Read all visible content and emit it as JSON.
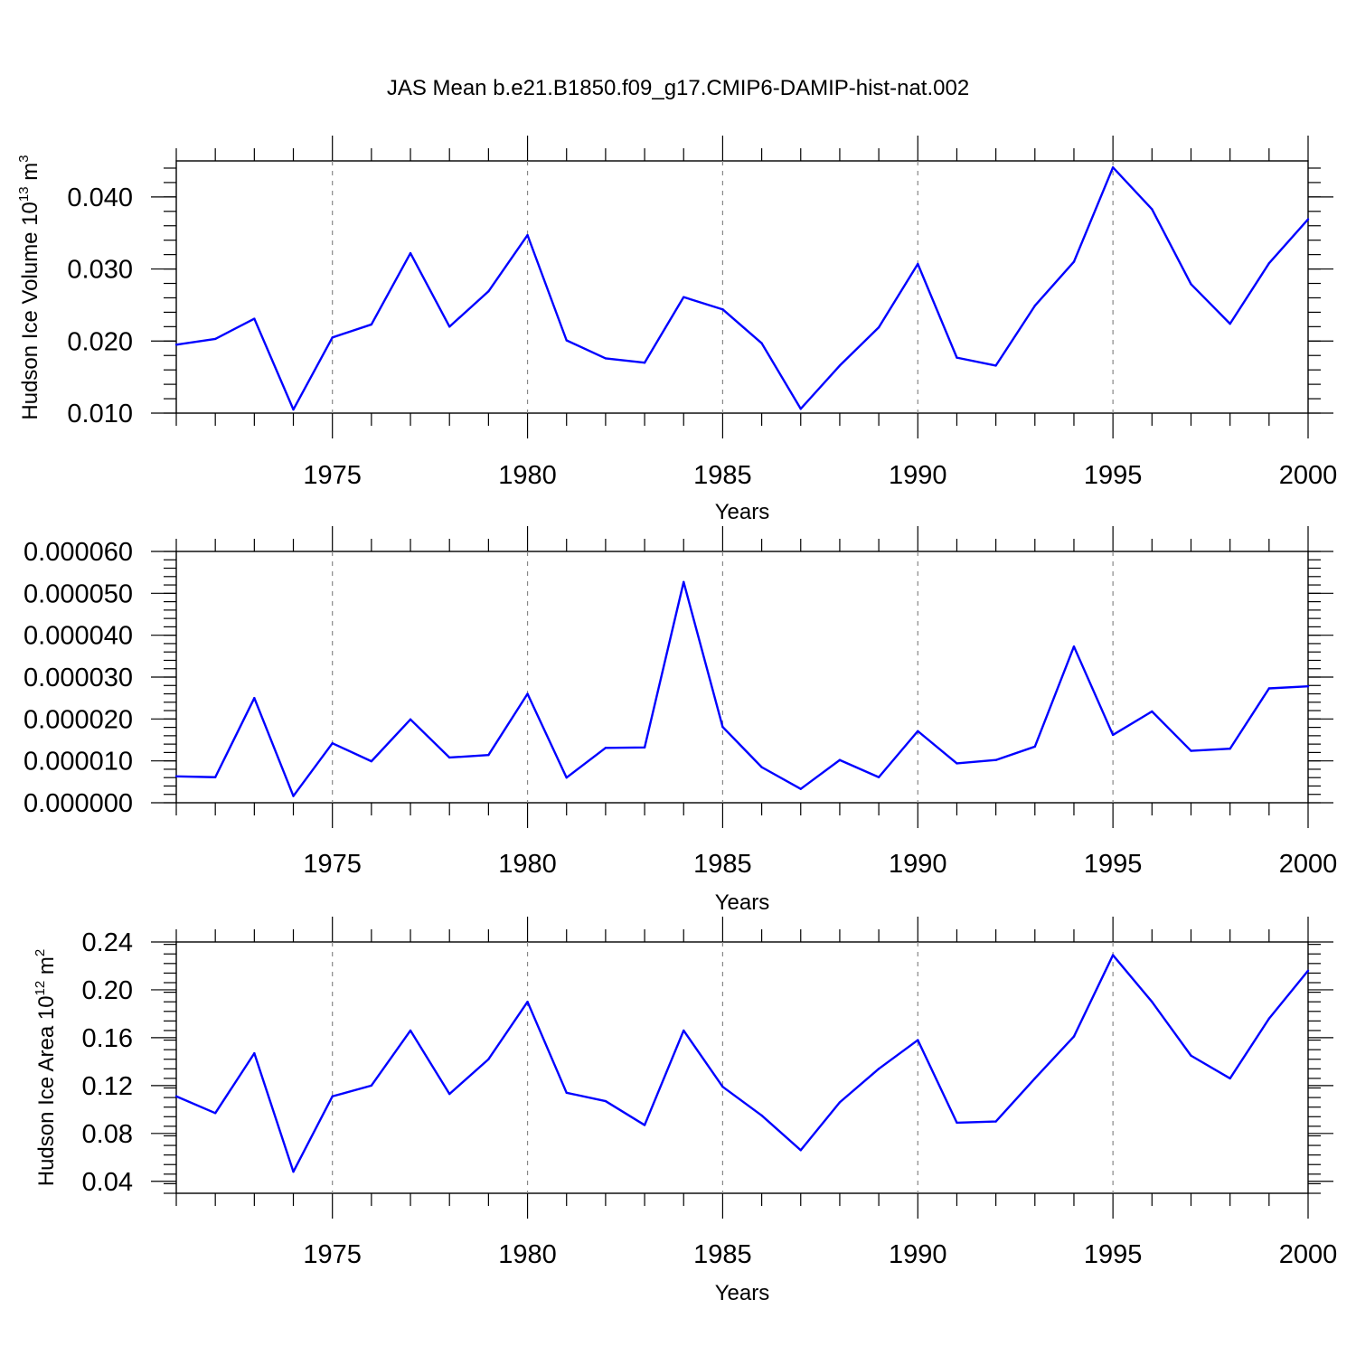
{
  "figure": {
    "title": "JAS Mean b.e21.B1850.f09_g17.CMIP6-DAMIP-hist-nat.002",
    "line_color": "#0000ff"
  },
  "chart_data": [
    {
      "type": "line",
      "name": "volume",
      "xlabel": "Years",
      "ylabel": "Hudson Ice Volume 10",
      "ylabel_exp": "13",
      "ylabel_unit": " m",
      "ylabel_unit_exp": "3",
      "xlim": [
        1971,
        2000
      ],
      "ylim": [
        0.01,
        0.045
      ],
      "x": [
        1971,
        1972,
        1973,
        1974,
        1975,
        1976,
        1977,
        1978,
        1979,
        1980,
        1981,
        1982,
        1983,
        1984,
        1985,
        1986,
        1987,
        1988,
        1989,
        1990,
        1991,
        1992,
        1993,
        1994,
        1995,
        1996,
        1997,
        1998,
        1999,
        2000
      ],
      "values": [
        0.0195,
        0.0203,
        0.0231,
        0.0105,
        0.0205,
        0.0223,
        0.0322,
        0.022,
        0.0269,
        0.0347,
        0.0201,
        0.0176,
        0.017,
        0.0261,
        0.0244,
        0.0197,
        0.0106,
        0.0166,
        0.0219,
        0.0307,
        0.0177,
        0.0166,
        0.0249,
        0.031,
        0.0441,
        0.0383,
        0.0279,
        0.0224,
        0.0308,
        0.0369
      ],
      "yticks": [
        0.01,
        0.02,
        0.03,
        0.04
      ],
      "ytick_labels": [
        "0.010",
        "0.020",
        "0.030",
        "0.040"
      ],
      "ytick_minor_step": 0.002,
      "xticks": [
        1975,
        1980,
        1985,
        1990,
        1995,
        2000
      ],
      "xtick_labels": [
        "1975",
        "1980",
        "1985",
        "1990",
        "1995",
        "2000"
      ],
      "grid_years": [
        1975,
        1980,
        1985,
        1990,
        1995
      ]
    },
    {
      "type": "line",
      "name": "middle",
      "xlabel": "Years",
      "ylabel": "",
      "ylabel_exp": "",
      "ylabel_unit": "",
      "ylabel_unit_exp": "",
      "xlim": [
        1971,
        2000
      ],
      "ylim": [
        0.0,
        6e-05
      ],
      "x": [
        1971,
        1972,
        1973,
        1974,
        1975,
        1976,
        1977,
        1978,
        1979,
        1980,
        1981,
        1982,
        1983,
        1984,
        1985,
        1986,
        1987,
        1988,
        1989,
        1990,
        1991,
        1992,
        1993,
        1994,
        1995,
        1996,
        1997,
        1998,
        1999,
        2000
      ],
      "values": [
        6.3e-06,
        6.1e-06,
        2.5e-05,
        1.6e-06,
        1.42e-05,
        9.9e-06,
        1.99e-05,
        1.08e-05,
        1.14e-05,
        2.6e-05,
        6e-06,
        1.31e-05,
        1.32e-05,
        5.27e-05,
        1.81e-05,
        8.5e-06,
        3.3e-06,
        1.02e-05,
        6.1e-06,
        1.71e-05,
        9.4e-06,
        1.02e-05,
        1.34e-05,
        3.73e-05,
        1.62e-05,
        2.18e-05,
        1.24e-05,
        1.29e-05,
        2.73e-05,
        2.78e-05
      ],
      "yticks": [
        0.0,
        1e-05,
        2e-05,
        3e-05,
        4e-05,
        5e-05,
        6e-05
      ],
      "ytick_labels": [
        "0.000000",
        "0.000010",
        "0.000020",
        "0.000030",
        "0.000040",
        "0.000050",
        "0.000060"
      ],
      "ytick_minor_step": 2e-06,
      "xticks": [
        1975,
        1980,
        1985,
        1990,
        1995,
        2000
      ],
      "xtick_labels": [
        "1975",
        "1980",
        "1985",
        "1990",
        "1995",
        "2000"
      ],
      "grid_years": [
        1975,
        1980,
        1985,
        1990,
        1995
      ]
    },
    {
      "type": "line",
      "name": "area",
      "xlabel": "Years",
      "ylabel": "Hudson Ice Area 10",
      "ylabel_exp": "12",
      "ylabel_unit": " m",
      "ylabel_unit_exp": "2",
      "xlim": [
        1971,
        2000
      ],
      "ylim": [
        0.03,
        0.24
      ],
      "x": [
        1971,
        1972,
        1973,
        1974,
        1975,
        1976,
        1977,
        1978,
        1979,
        1980,
        1981,
        1982,
        1983,
        1984,
        1985,
        1986,
        1987,
        1988,
        1989,
        1990,
        1991,
        1992,
        1993,
        1994,
        1995,
        1996,
        1997,
        1998,
        1999,
        2000
      ],
      "values": [
        0.111,
        0.097,
        0.147,
        0.048,
        0.111,
        0.12,
        0.166,
        0.113,
        0.142,
        0.19,
        0.114,
        0.107,
        0.087,
        0.166,
        0.119,
        0.095,
        0.066,
        0.106,
        0.134,
        0.158,
        0.089,
        0.09,
        0.126,
        0.161,
        0.229,
        0.19,
        0.145,
        0.126,
        0.176,
        0.216
      ],
      "yticks": [
        0.04,
        0.08,
        0.12,
        0.16,
        0.2,
        0.24
      ],
      "ytick_labels": [
        "0.04",
        "0.08",
        "0.12",
        "0.16",
        "0.20",
        "0.24"
      ],
      "ytick_minor_step": 0.008,
      "xticks": [
        1975,
        1980,
        1985,
        1990,
        1995,
        2000
      ],
      "xtick_labels": [
        "1975",
        "1980",
        "1985",
        "1990",
        "1995",
        "2000"
      ],
      "grid_years": [
        1975,
        1980,
        1985,
        1990,
        1995
      ]
    }
  ]
}
